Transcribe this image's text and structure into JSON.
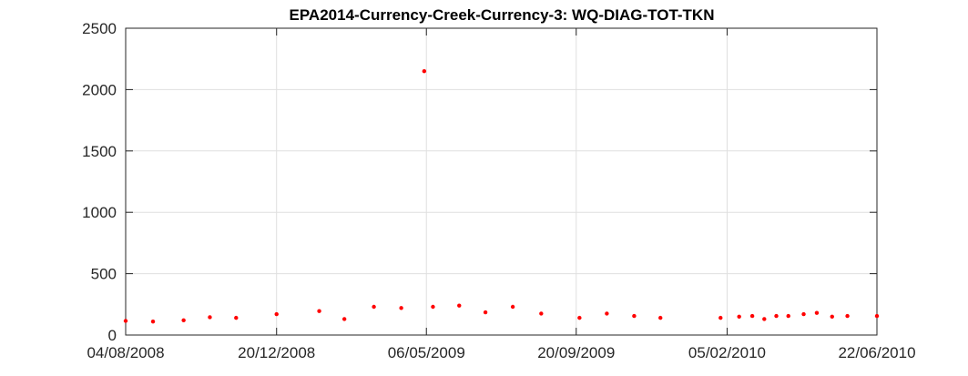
{
  "chart_data": {
    "type": "scatter",
    "title": "EPA2014-Currency-Creek-Currency-3: WQ-DIAG-TOT-TKN",
    "xlabel": "",
    "ylabel": "",
    "x_axis": "date",
    "xlim": [
      "2008-08-04",
      "2010-06-22"
    ],
    "ylim": [
      0,
      2500
    ],
    "x_ticks": [
      "04/08/2008",
      "20/12/2008",
      "06/05/2009",
      "20/09/2009",
      "05/02/2010",
      "22/06/2010"
    ],
    "y_ticks": [
      "0",
      "500",
      "1000",
      "1500",
      "2000",
      "2500"
    ],
    "grid": true,
    "legend": "none",
    "marker_color": "#ff0000",
    "series": [
      {
        "x": [
          "2008-08-04",
          "2008-08-29",
          "2008-09-26",
          "2008-10-20",
          "2008-11-13",
          "2008-12-20",
          "2009-01-28",
          "2009-02-20",
          "2009-03-19",
          "2009-04-13",
          "2009-05-04",
          "2009-05-12",
          "2009-06-05",
          "2009-06-29",
          "2009-07-24",
          "2009-08-19",
          "2009-09-23",
          "2009-10-18",
          "2009-11-12",
          "2009-12-06",
          "2010-01-30",
          "2010-02-16",
          "2010-02-28",
          "2010-03-11",
          "2010-03-22",
          "2010-04-02",
          "2010-04-16",
          "2010-04-28",
          "2010-05-12",
          "2010-05-26",
          "2010-06-22"
        ],
        "y": [
          115,
          110,
          120,
          145,
          140,
          170,
          195,
          130,
          230,
          220,
          2150,
          230,
          240,
          185,
          230,
          175,
          140,
          175,
          155,
          140,
          140,
          150,
          155,
          130,
          155,
          155,
          170,
          180,
          150,
          155,
          155
        ]
      }
    ]
  }
}
